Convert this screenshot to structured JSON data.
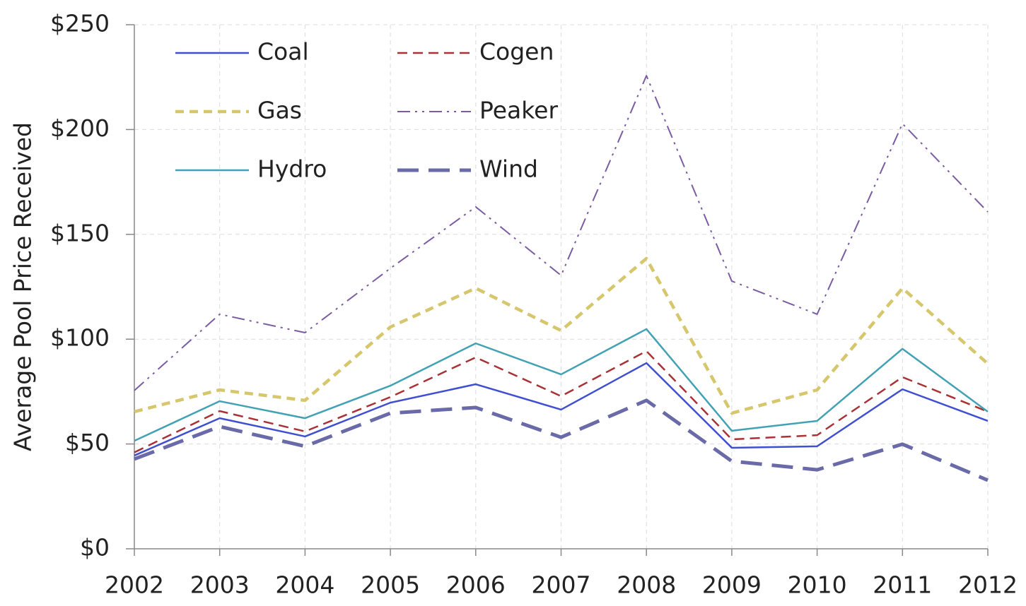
{
  "chart_data": {
    "type": "line",
    "y_label": "Average Pool Price Received",
    "categories": [
      "2002",
      "2003",
      "2004",
      "2005",
      "2006",
      "2007",
      "2008",
      "2009",
      "2010",
      "2011",
      "2012"
    ],
    "series": [
      {
        "name": "Coal",
        "color": "#3f4fd0",
        "dash": "solid",
        "values": [
          44.5,
          62.3,
          53.6,
          69.7,
          78.5,
          66.4,
          88.6,
          48.2,
          48.9,
          76.1,
          61
        ]
      },
      {
        "name": "Cogen",
        "color": "#a83236",
        "dash": "dash",
        "values": [
          46,
          65.7,
          56,
          72.4,
          91.3,
          72.8,
          94.3,
          52.2,
          54.2,
          81.9,
          65.4
        ]
      },
      {
        "name": "Gas",
        "color": "#d6c66c",
        "dash": "thick-dash",
        "values": [
          65.4,
          75.8,
          70.8,
          105.8,
          124.3,
          104.1,
          138.5,
          64.7,
          75.8,
          124.3,
          88.3
        ]
      },
      {
        "name": "Peaker",
        "color": "#7b5ba2",
        "dash": "dash-dot-dot",
        "values": [
          75.5,
          111.9,
          103.1,
          133.8,
          163.1,
          130.4,
          225.7,
          127.7,
          111.9,
          202.8,
          160.7
        ]
      },
      {
        "name": "Hydro",
        "color": "#42a2b4",
        "dash": "solid",
        "values": [
          51.5,
          70.4,
          62.3,
          77.8,
          98,
          83.2,
          104.8,
          56.3,
          61,
          95.4,
          65.4
        ]
      },
      {
        "name": "Wind",
        "color": "#6a6aa8",
        "dash": "long-dash",
        "values": [
          42.8,
          58.3,
          48.9,
          64.7,
          67.4,
          53.2,
          70.8,
          41.8,
          37.7,
          49.9,
          32.7
        ]
      }
    ],
    "ylim": [
      0,
      250
    ],
    "yticks": [
      {
        "value": 0,
        "label": "$0"
      },
      {
        "value": 50,
        "label": "$50"
      },
      {
        "value": 100,
        "label": "$100"
      },
      {
        "value": 150,
        "label": "$150"
      },
      {
        "value": 200,
        "label": "$200"
      },
      {
        "value": 250,
        "label": "$250"
      }
    ],
    "grid": true,
    "legend": "top-left"
  }
}
